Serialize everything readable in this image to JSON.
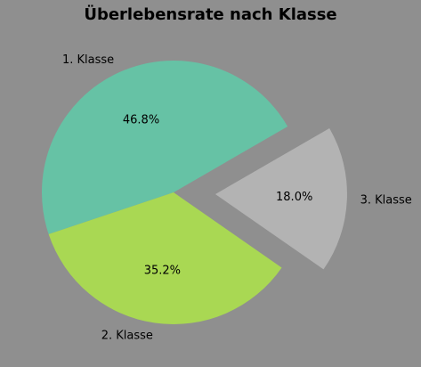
{
  "chart_data": {
    "type": "pie",
    "title": "Überlebensrate nach Klasse",
    "categories": [
      "1. Klasse",
      "2. Klasse",
      "3. Klasse"
    ],
    "values": [
      46.8,
      35.2,
      18.0
    ],
    "percent_labels": [
      "46.8%",
      "35.2%",
      "18.0%"
    ],
    "colors": [
      "#66c2a5",
      "#a9d853",
      "#b3b3b3"
    ],
    "explode": [
      0,
      0,
      1
    ],
    "legend": "none"
  }
}
